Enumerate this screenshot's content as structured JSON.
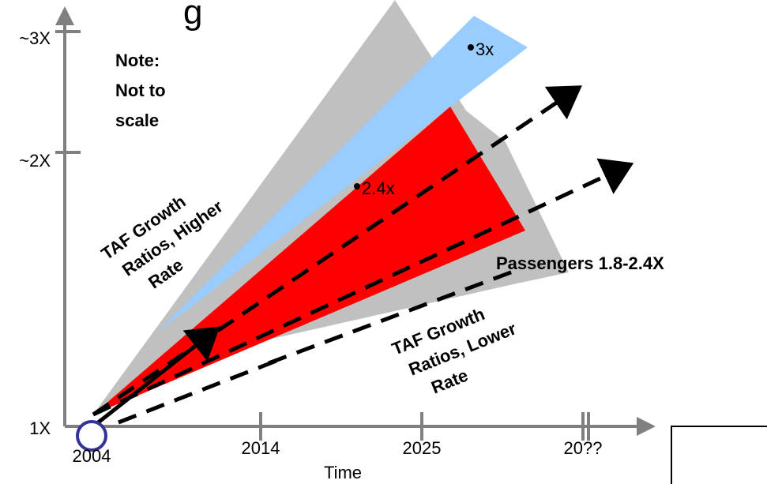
{
  "title_fragment": "g",
  "y_axis": {
    "ticks": [
      "~3X",
      "~2X",
      "1X"
    ]
  },
  "x_axis": {
    "ticks": [
      "2004",
      "2014",
      "2025",
      "20??"
    ],
    "label": "Time"
  },
  "note": [
    "Note:",
    "Not to",
    "scale"
  ],
  "markers": {
    "upper": "3x",
    "middle": "2.4x"
  },
  "labels": {
    "higher_rate": [
      "TAF Growth",
      "Ratios, Higher",
      "Rate"
    ],
    "lower_rate": [
      "TAF Growth",
      "Ratios, Lower",
      "Rate"
    ],
    "passengers": "Passengers 1.8-2.4X"
  },
  "colors": {
    "gray_band": "#c0c0c0",
    "blue_band": "#99ccff",
    "red_band": "#ff0000",
    "axis": "#808080",
    "origin_circle": "#333399"
  }
}
